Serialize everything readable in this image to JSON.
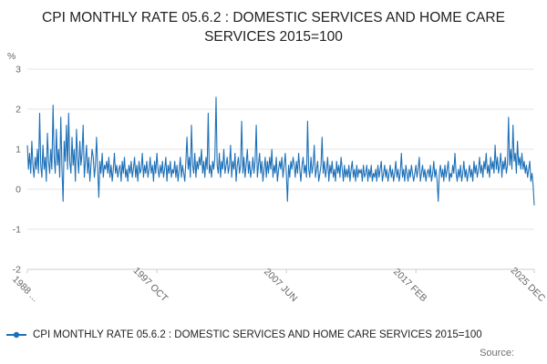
{
  "source": {
    "label": "Source:"
  },
  "colors": {
    "series": "#1d70b8",
    "grid": "#e6e6e6",
    "axis_line": "#cccccc",
    "axis_text": "#666666"
  },
  "chart_data": {
    "type": "line",
    "title": "CPI MONTHLY RATE 05.6.2 : DOMESTIC SERVICES AND HOME CARE SERVICES 2015=100",
    "legend_label": "CPI MONTHLY RATE 05.6.2 : DOMESTIC SERVICES AND HOME CARE SERVICES 2015=100",
    "xlabel": "",
    "ylabel": "%",
    "ylim": [
      -2,
      3
    ],
    "yticks": [
      3,
      2,
      1,
      0,
      -1,
      -2
    ],
    "grid": true,
    "legend_position": "bottom",
    "x_start": "1988 FEB",
    "x_end": "2025 DEC",
    "x_ticks": [
      {
        "label": "1988 ...",
        "pos": 0
      },
      {
        "label": "1997 OCT",
        "pos": 0.2555
      },
      {
        "label": "2007 JUN",
        "pos": 0.511
      },
      {
        "label": "2017 FEB",
        "pos": 0.7665
      },
      {
        "label": "2025 DEC",
        "pos": 1
      }
    ],
    "values": [
      1.1,
      0.5,
      0.9,
      0.4,
      1.2,
      0.6,
      0.3,
      0.8,
      0.5,
      1.0,
      0.4,
      1.9,
      0.6,
      0.3,
      1.1,
      0.5,
      0.8,
      0.2,
      1.4,
      0.7,
      0.4,
      1.0,
      0.5,
      2.1,
      0.8,
      0.4,
      1.5,
      0.6,
      1.0,
      0.3,
      1.8,
      0.5,
      -0.3,
      1.2,
      0.7,
      1.6,
      0.5,
      1.9,
      0.7,
      0.4,
      1.3,
      0.6,
      1.0,
      0.2,
      1.5,
      0.8,
      0.4,
      1.2,
      0.6,
      0.9,
      1.6,
      0.3,
      0.7,
      1.1,
      0.4,
      0.8,
      0.2,
      0.6,
      1.0,
      0.8,
      0.3,
      0.6,
      1.3,
      0.5,
      -0.2,
      0.7,
      0.4,
      0.9,
      0.3,
      0.6,
      0.5,
      0.7,
      0.4,
      0.8,
      0.3,
      0.6,
      0.2,
      0.5,
      0.9,
      0.4,
      0.6,
      0.3,
      0.5,
      0.6,
      0.2,
      0.7,
      0.4,
      0.8,
      0.3,
      0.5,
      0.2,
      0.6,
      0.4,
      0.7,
      0.3,
      0.5,
      0.8,
      0.3,
      0.6,
      0.2,
      0.7,
      0.4,
      0.5,
      0.9,
      0.3,
      0.6,
      0.4,
      0.7,
      0.3,
      0.5,
      0.8,
      0.4,
      0.6,
      0.2,
      0.7,
      0.4,
      0.9,
      0.5,
      0.3,
      0.6,
      0.4,
      0.7,
      0.3,
      0.5,
      0.8,
      0.2,
      0.6,
      0.4,
      0.7,
      0.3,
      0.5,
      0.4,
      0.7,
      0.3,
      0.6,
      0.2,
      0.5,
      0.8,
      0.3,
      0.6,
      0.4,
      0.2,
      0.7,
      1.3,
      0.5,
      0.8,
      0.3,
      1.6,
      0.6,
      0.4,
      0.9,
      0.3,
      0.7,
      0.5,
      0.8,
      0.6,
      1.0,
      0.4,
      0.7,
      0.3,
      0.8,
      0.5,
      1.9,
      0.4,
      0.6,
      0.3,
      0.7,
      0.5,
      0.8,
      2.3,
      0.6,
      0.4,
      0.9,
      0.3,
      0.7,
      0.5,
      1.0,
      0.4,
      0.6,
      0.8,
      0.4,
      0.6,
      1.1,
      0.3,
      0.7,
      0.5,
      0.9,
      0.2,
      0.6,
      0.8,
      0.4,
      0.6,
      1.7,
      0.4,
      0.8,
      0.3,
      0.6,
      1.0,
      0.4,
      0.7,
      0.3,
      0.5,
      0.8,
      0.4,
      0.7,
      1.6,
      0.3,
      0.6,
      0.9,
      0.4,
      0.7,
      0.2,
      0.5,
      0.8,
      0.3,
      0.7,
      0.4,
      0.8,
      0.5,
      1.0,
      0.3,
      0.6,
      0.4,
      0.8,
      0.2,
      0.5,
      0.7,
      0.5,
      0.8,
      0.3,
      0.6,
      0.9,
      0.4,
      -0.3,
      0.6,
      0.3,
      0.7,
      0.5,
      0.8,
      0.6,
      0.3,
      0.7,
      0.4,
      0.9,
      0.5,
      0.2,
      0.6,
      0.8,
      0.4,
      0.6,
      0.3,
      1.7,
      0.5,
      0.3,
      0.8,
      0.4,
      0.6,
      1.1,
      0.3,
      0.5,
      0.7,
      0.2,
      0.4,
      0.6,
      1.3,
      0.4,
      0.7,
      0.3,
      0.5,
      0.8,
      0.2,
      0.6,
      0.4,
      0.7,
      0.3,
      0.5,
      0.2,
      0.7,
      0.4,
      0.6,
      0.3,
      0.8,
      0.5,
      0.2,
      0.6,
      0.3,
      0.5,
      0.3,
      0.6,
      0.2,
      0.5,
      0.7,
      0.3,
      0.5,
      0.2,
      0.6,
      0.3,
      0.5,
      0.4,
      0.5,
      0.2,
      0.6,
      0.3,
      0.4,
      0.6,
      0.2,
      0.5,
      0.3,
      0.6,
      0.2,
      0.4,
      0.3,
      0.5,
      0.2,
      0.6,
      0.3,
      0.5,
      0.7,
      0.2,
      0.4,
      0.6,
      0.3,
      0.5,
      0.2,
      0.4,
      0.6,
      0.3,
      0.5,
      0.2,
      0.4,
      0.7,
      0.3,
      0.5,
      0.2,
      0.4,
      0.9,
      0.3,
      0.5,
      0.2,
      0.6,
      0.4,
      0.2,
      0.5,
      0.3,
      0.6,
      0.4,
      0.2,
      0.4,
      0.6,
      0.3,
      0.5,
      0.8,
      0.2,
      0.4,
      0.6,
      0.3,
      0.5,
      0.2,
      0.4,
      0.5,
      0.3,
      0.6,
      0.2,
      0.4,
      0.7,
      0.3,
      0.5,
      0.2,
      -0.3,
      0.4,
      0.6,
      0.3,
      0.5,
      0.2,
      0.6,
      0.3,
      0.5,
      0.7,
      0.2,
      0.4,
      0.3,
      0.6,
      0.4,
      0.9,
      0.4,
      0.2,
      0.5,
      0.3,
      0.6,
      0.2,
      0.4,
      0.7,
      0.3,
      0.5,
      0.2,
      0.4,
      0.6,
      0.3,
      0.5,
      0.2,
      0.7,
      0.4,
      0.6,
      0.3,
      0.5,
      0.8,
      0.4,
      0.6,
      0.3,
      0.7,
      0.5,
      0.9,
      0.4,
      0.6,
      0.3,
      0.8,
      0.5,
      0.7,
      0.4,
      1.1,
      0.5,
      0.8,
      0.4,
      0.6,
      0.9,
      0.3,
      0.7,
      0.5,
      0.8,
      0.4,
      0.6,
      1.8,
      0.6,
      1.0,
      0.5,
      1.6,
      0.7,
      0.9,
      0.4,
      1.2,
      0.6,
      0.8,
      0.5,
      0.9,
      0.5,
      0.7,
      0.4,
      0.6,
      0.3,
      0.5,
      0.7,
      0.2,
      0.4,
      0.1,
      -0.4
    ]
  }
}
